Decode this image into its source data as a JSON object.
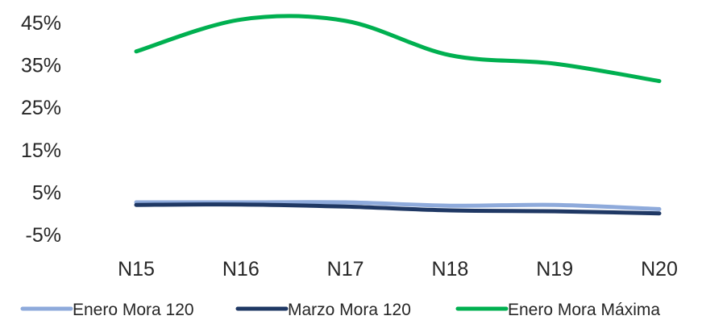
{
  "chart_data": {
    "type": "line",
    "title": "",
    "xlabel": "",
    "ylabel": "",
    "categories": [
      "N15",
      "N16",
      "N17",
      "N18",
      "N19",
      "N20"
    ],
    "y_ticks": [
      "-5%",
      "5%",
      "15%",
      "25%",
      "35%",
      "45%"
    ],
    "y_tick_values": [
      -5,
      5,
      15,
      25,
      35,
      45
    ],
    "ylim": [
      -5,
      45
    ],
    "grid": false,
    "legend_position": "bottom",
    "smooth": true,
    "series": [
      {
        "name": "Enero Mora 120",
        "color": "#8EAADB",
        "values": [
          2.6,
          2.6,
          2.6,
          1.8,
          2.0,
          1.0
        ]
      },
      {
        "name": "Marzo Mora 120",
        "color": "#1F3864",
        "values": [
          2.0,
          2.1,
          1.6,
          0.7,
          0.5,
          0.0
        ]
      },
      {
        "name": "Enero Mora Máxima",
        "color": "#00B050",
        "values": [
          38.2,
          45.7,
          45.4,
          37.3,
          35.3,
          31.2
        ]
      }
    ]
  }
}
